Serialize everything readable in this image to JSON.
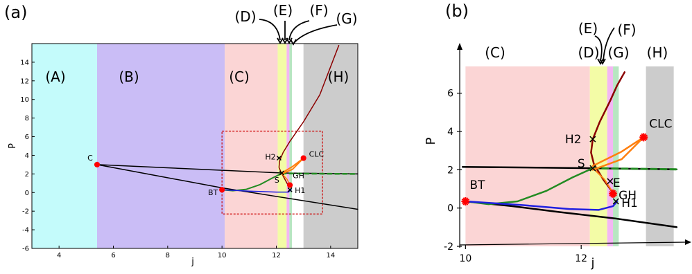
{
  "chart_data": [
    {
      "id": "a",
      "type": "line",
      "panel_label": "(a)",
      "xlabel": "j",
      "ylabel": "P",
      "xlim": [
        3,
        15
      ],
      "ylim": [
        -6,
        16
      ],
      "xticks": [
        4,
        6,
        8,
        10,
        12,
        14
      ],
      "yticks": [
        -6,
        -4,
        -2,
        0,
        2,
        4,
        6,
        8,
        10,
        12,
        14
      ],
      "regions": [
        {
          "label": "(A)",
          "x0": 3.0,
          "x1": 5.4,
          "color": "#c4fbfb"
        },
        {
          "label": "(B)",
          "x0": 5.4,
          "x1": 10.1,
          "color": "#cabdf6"
        },
        {
          "label": "(C)",
          "x0": 10.1,
          "x1": 12.05,
          "color": "#fbd5d5"
        },
        {
          "label": "(D)",
          "x0": 12.05,
          "x1": 12.38,
          "color": "#f3fca6"
        },
        {
          "label": "(E)",
          "x0": 12.38,
          "x1": 12.48,
          "color": "#f3b7f3"
        },
        {
          "label": "(F)",
          "x0": 12.48,
          "x1": 12.58,
          "color": "#b7e6c1"
        },
        {
          "label": "(G)",
          "x0": 12.58,
          "x1": 13.0,
          "color": "#ffffff"
        },
        {
          "label": "(H)",
          "x0": 13.0,
          "x1": 15.0,
          "color": "#cccccc"
        }
      ],
      "zoom_box": {
        "x0": 10.0,
        "x1": 13.7,
        "y0": -2.3,
        "y1": 6.6
      },
      "series": [
        {
          "color": "#000000",
          "width": 1.5,
          "dash": "",
          "points": [
            [
              5.4,
              3.0
            ],
            [
              12.2,
              2.1
            ],
            [
              15.0,
              2.0
            ]
          ]
        },
        {
          "color": "#000000",
          "width": 1.5,
          "dash": "",
          "points": [
            [
              5.4,
              3.0
            ],
            [
              10.0,
              0.5
            ],
            [
              15.0,
              -1.8
            ]
          ]
        },
        {
          "color": "#8b0000",
          "width": 1.5,
          "dash": "",
          "points": [
            [
              12.45,
              0.7
            ],
            [
              12.3,
              1.5
            ],
            [
              12.17,
              2.2
            ],
            [
              12.1,
              2.7
            ],
            [
              12.12,
              3.4
            ],
            [
              12.25,
              4.3
            ],
            [
              12.5,
              5.5
            ],
            [
              13.0,
              7.6
            ],
            [
              13.6,
              10.5
            ],
            [
              14.3,
              15.8
            ]
          ]
        },
        {
          "color": "#228b22",
          "width": 2,
          "dash": "",
          "points": [
            [
              10.0,
              0.3
            ],
            [
              10.4,
              0.2
            ],
            [
              10.9,
              0.35
            ],
            [
              11.4,
              0.85
            ],
            [
              11.85,
              1.55
            ],
            [
              12.2,
              2.05
            ]
          ]
        },
        {
          "color": "#228b22",
          "width": 2.5,
          "dash": "6,5",
          "points": [
            [
              12.2,
              2.05
            ],
            [
              15.0,
              2.0
            ]
          ]
        },
        {
          "color": "#1f1fe0",
          "width": 1.5,
          "dash": "",
          "points": [
            [
              10.0,
              0.3
            ],
            [
              11.0,
              0.15
            ],
            [
              12.0,
              0.05
            ],
            [
              12.45,
              0.05
            ],
            [
              12.55,
              0.3
            ]
          ]
        },
        {
          "color": "#ff7f0e",
          "width": 2,
          "dash": "",
          "points": [
            [
              12.2,
              2.1
            ],
            [
              12.6,
              2.8
            ],
            [
              13.0,
              3.7
            ]
          ]
        },
        {
          "color": "#ff7f0e",
          "width": 2,
          "dash": "",
          "points": [
            [
              12.2,
              2.0
            ],
            [
              12.6,
              2.5
            ],
            [
              13.0,
              3.7
            ]
          ]
        },
        {
          "color": "#ff7f0e",
          "width": 1.5,
          "dash": "",
          "points": [
            [
              12.2,
              2.05
            ],
            [
              12.4,
              1.4
            ],
            [
              12.5,
              0.8
            ]
          ]
        }
      ],
      "points": [
        {
          "label": "C",
          "x": 5.4,
          "y": 3.0,
          "marker": "star"
        },
        {
          "label": "BT",
          "x": 10.0,
          "y": 0.3,
          "marker": "star"
        },
        {
          "label": "H2",
          "x": 12.1,
          "y": 3.7,
          "marker": "x"
        },
        {
          "label": "S",
          "x": 12.2,
          "y": 2.1,
          "marker": "x"
        },
        {
          "label": "CLC",
          "x": 13.0,
          "y": 3.7,
          "marker": "star"
        },
        {
          "label": "GH",
          "x": 12.5,
          "y": 0.8,
          "marker": "star"
        },
        {
          "label": "H1",
          "x": 12.5,
          "y": 0.3,
          "marker": "x"
        }
      ],
      "top_labels": [
        "(D)",
        "(E)",
        "(F)",
        "(G)"
      ]
    },
    {
      "id": "b",
      "type": "line",
      "panel_label": "(b)",
      "xlabel": "j",
      "ylabel": "P",
      "xlim": [
        9.9,
        13.7
      ],
      "ylim": [
        -2,
        7.4
      ],
      "xticks": [
        10,
        12
      ],
      "yticks": [
        -2,
        0,
        2,
        4,
        6
      ],
      "regions": [
        {
          "label": "(C)",
          "x0": 10.0,
          "x1": 12.15,
          "color": "#fbd5d5"
        },
        {
          "label": "(D)",
          "x0": 12.15,
          "x1": 12.45,
          "color": "#f3fca6"
        },
        {
          "label": "(E)",
          "x0": 12.45,
          "x1": 12.55,
          "color": "#f3b7f3"
        },
        {
          "label": "(G)",
          "x0": 12.55,
          "x1": 12.65,
          "color": "#b7e6c1"
        },
        {
          "label": "(F)",
          "x0": 12.65,
          "x1": 13.12,
          "color": "#ffffff"
        },
        {
          "label": "(H)",
          "x0": 13.12,
          "x1": 13.6,
          "color": "#cccccc"
        }
      ],
      "series": [
        {
          "color": "#000000",
          "width": 2.5,
          "dash": "",
          "points": [
            [
              9.95,
              2.15
            ],
            [
              12.2,
              2.08
            ],
            [
              13.65,
              2.02
            ]
          ]
        },
        {
          "color": "#000000",
          "width": 2.5,
          "dash": "",
          "points": [
            [
              10.0,
              0.35
            ],
            [
              10.8,
              0.1
            ],
            [
              11.6,
              -0.2
            ],
            [
              12.6,
              -0.55
            ],
            [
              13.65,
              -1.0
            ]
          ]
        },
        {
          "color": "#8b0000",
          "width": 2.5,
          "dash": "",
          "points": [
            [
              12.55,
              0.8
            ],
            [
              12.38,
              1.5
            ],
            [
              12.22,
              2.3
            ],
            [
              12.17,
              2.9
            ],
            [
              12.2,
              3.6
            ],
            [
              12.32,
              4.5
            ],
            [
              12.5,
              5.6
            ],
            [
              12.62,
              6.4
            ],
            [
              12.75,
              7.1
            ]
          ]
        },
        {
          "color": "#228b22",
          "width": 2.5,
          "dash": "",
          "points": [
            [
              10.0,
              0.35
            ],
            [
              10.4,
              0.2
            ],
            [
              10.9,
              0.35
            ],
            [
              11.4,
              0.9
            ],
            [
              11.85,
              1.6
            ],
            [
              12.2,
              2.08
            ]
          ]
        },
        {
          "color": "#228b22",
          "width": 3,
          "dash": "8,6",
          "points": [
            [
              12.2,
              2.08
            ],
            [
              13.65,
              2.02
            ]
          ]
        },
        {
          "color": "#1f1fe0",
          "width": 2.5,
          "dash": "",
          "points": [
            [
              10.0,
              0.35
            ],
            [
              11.0,
              0.15
            ],
            [
              11.8,
              -0.05
            ],
            [
              12.3,
              -0.1
            ],
            [
              12.55,
              0.1
            ],
            [
              12.62,
              0.35
            ]
          ]
        },
        {
          "color": "#ff7f0e",
          "width": 2.5,
          "dash": "",
          "points": [
            [
              12.2,
              2.2
            ],
            [
              12.7,
              2.95
            ],
            [
              13.08,
              3.7
            ]
          ]
        },
        {
          "color": "#ff7f0e",
          "width": 2.5,
          "dash": "",
          "points": [
            [
              12.2,
              2.0
            ],
            [
              12.7,
              2.55
            ],
            [
              13.08,
              3.7
            ]
          ]
        },
        {
          "color": "#ff7f0e",
          "width": 2,
          "dash": "",
          "points": [
            [
              12.2,
              2.1
            ],
            [
              12.4,
              1.5
            ],
            [
              12.55,
              0.8
            ]
          ]
        }
      ],
      "points": [
        {
          "label": "BT",
          "x": 10.0,
          "y": 0.35,
          "marker": "star"
        },
        {
          "label": "H2",
          "x": 12.2,
          "y": 3.6,
          "marker": "x"
        },
        {
          "label": "S",
          "x": 12.2,
          "y": 2.08,
          "marker": "x"
        },
        {
          "label": "CLC",
          "x": 13.08,
          "y": 3.7,
          "marker": "star"
        },
        {
          "label": "E",
          "x": 12.5,
          "y": 1.4,
          "marker": "x"
        },
        {
          "label": "GH",
          "x": 12.55,
          "y": 0.75,
          "marker": "star"
        },
        {
          "label": "H1",
          "x": 12.6,
          "y": 0.35,
          "marker": "x"
        }
      ],
      "top_labels": [
        "(E)",
        "(F)"
      ]
    }
  ]
}
